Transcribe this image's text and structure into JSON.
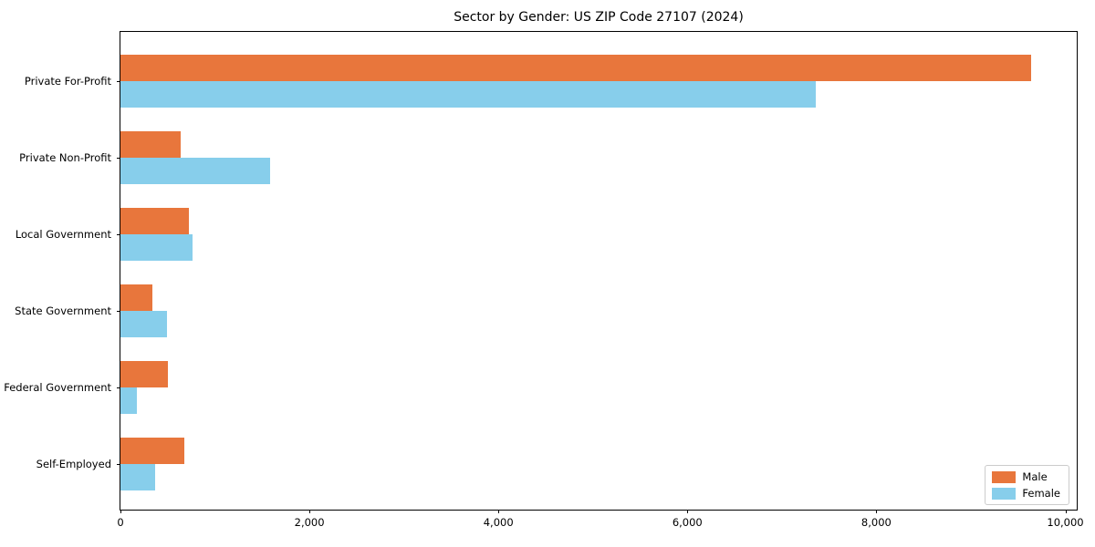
{
  "chart_data": {
    "type": "bar",
    "orientation": "horizontal",
    "title": "Sector by Gender: US ZIP Code 27107 (2024)",
    "categories": [
      "Private For-Profit",
      "Private Non-Profit",
      "Local Government",
      "State Government",
      "Federal Government",
      "Self-Employed"
    ],
    "series": [
      {
        "name": "Male",
        "color": "#e8763c",
        "values": [
          9640,
          635,
          725,
          340,
          500,
          675
        ]
      },
      {
        "name": "Female",
        "color": "#87ceeb",
        "values": [
          7355,
          1580,
          760,
          490,
          175,
          370
        ]
      }
    ],
    "xlabel": "",
    "ylabel": "",
    "xlim": [
      0,
      10140
    ],
    "x_ticks": [
      0,
      2000,
      4000,
      6000,
      8000,
      10000
    ],
    "x_tick_labels": [
      "0",
      "2,000",
      "4,000",
      "6,000",
      "8,000",
      "10,000"
    ],
    "grid": false,
    "legend": {
      "position": "lower right",
      "entries": [
        "Male",
        "Female"
      ]
    },
    "colors": {
      "male": "#e8763c",
      "female": "#87ceeb",
      "spine": "#000000",
      "background": "#ffffff",
      "legend_border": "#cccccc"
    }
  }
}
